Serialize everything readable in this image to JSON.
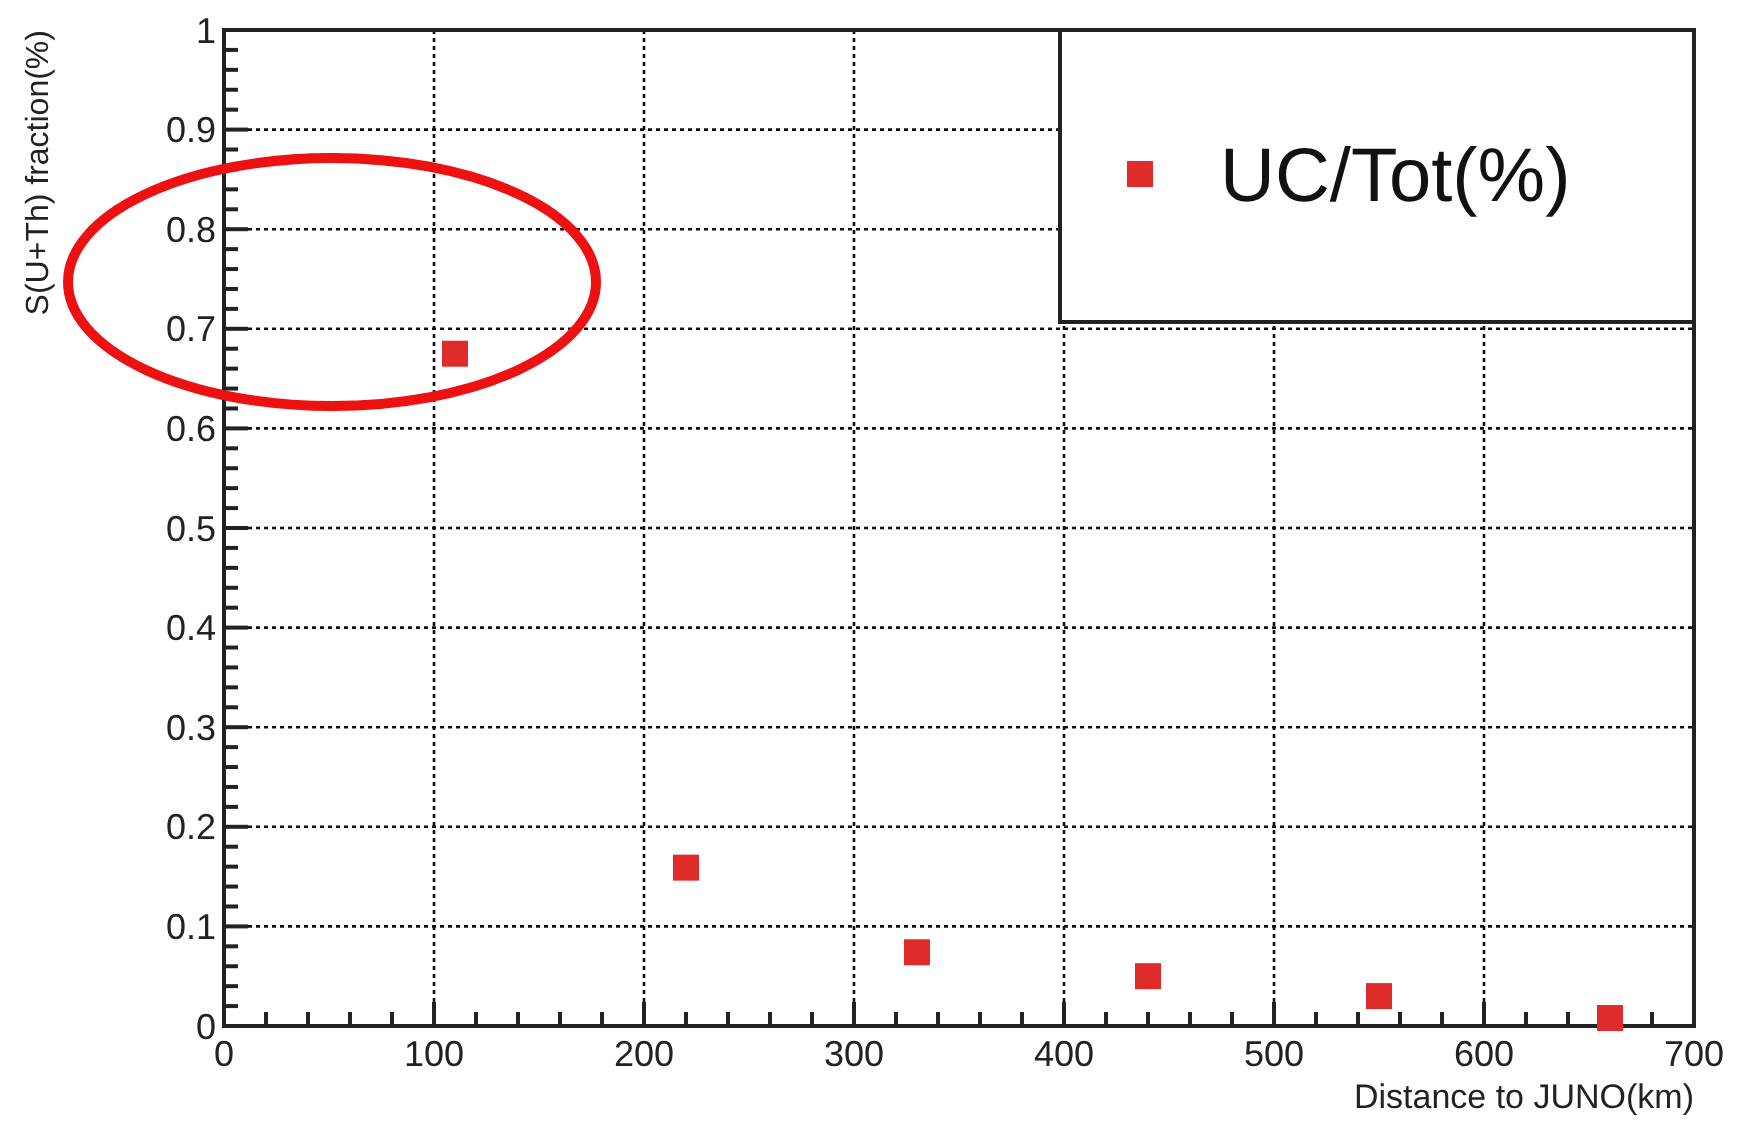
{
  "chart_data": {
    "type": "scatter",
    "xlabel": "Distance to JUNO(km)",
    "ylabel": "S(U+Th) fraction(%)",
    "x": [
      110,
      220,
      330,
      440,
      550,
      660
    ],
    "series": [
      {
        "name": "UC/Tot(%)",
        "color": "#e02b2b",
        "values": [
          0.675,
          0.159,
          0.074,
          0.05,
          0.03,
          0.008
        ]
      }
    ],
    "xlim": [
      0,
      700
    ],
    "xticks": [
      0,
      {
        "value": 20,
        "label": null
      },
      {
        "value": 40,
        "label": null
      },
      {
        "value": 60,
        "label": null
      },
      {
        "value": 80,
        "label": null
      },
      100,
      {
        "value": 120,
        "label": null
      },
      {
        "value": 140,
        "label": null
      },
      {
        "value": 160,
        "label": null
      },
      {
        "value": 180,
        "label": null
      },
      200,
      {
        "value": 220,
        "label": null
      },
      {
        "value": 240,
        "label": null
      },
      {
        "value": 260,
        "label": null
      },
      {
        "value": 280,
        "label": null
      },
      300,
      {
        "value": 320,
        "label": null
      },
      {
        "value": 340,
        "label": null
      },
      {
        "value": 360,
        "label": null
      },
      {
        "value": 380,
        "label": null
      },
      400,
      {
        "value": 420,
        "label": null
      },
      {
        "value": 440,
        "label": null
      },
      {
        "value": 460,
        "label": null
      },
      {
        "value": 480,
        "label": null
      },
      500,
      {
        "value": 520,
        "label": null
      },
      {
        "value": 540,
        "label": null
      },
      {
        "value": 560,
        "label": null
      },
      {
        "value": 580,
        "label": null
      },
      600,
      {
        "value": 620,
        "label": null
      },
      {
        "value": 640,
        "label": null
      },
      {
        "value": 660,
        "label": null
      },
      {
        "value": 680,
        "label": null
      },
      700
    ],
    "ylim": [
      0,
      1
    ],
    "yticks": [
      0,
      {
        "value": 0.02,
        "label": null
      },
      {
        "value": 0.04,
        "label": null
      },
      {
        "value": 0.06,
        "label": null
      },
      {
        "value": 0.08,
        "label": null
      },
      0.1,
      {
        "value": 0.12,
        "label": null
      },
      {
        "value": 0.14,
        "label": null
      },
      {
        "value": 0.16,
        "label": null
      },
      {
        "value": 0.18,
        "label": null
      },
      0.2,
      {
        "value": 0.22,
        "label": null
      },
      {
        "value": 0.24,
        "label": null
      },
      {
        "value": 0.26,
        "label": null
      },
      {
        "value": 0.28,
        "label": null
      },
      0.3,
      {
        "value": 0.32,
        "label": null
      },
      {
        "value": 0.34,
        "label": null
      },
      {
        "value": 0.36,
        "label": null
      },
      {
        "value": 0.38,
        "label": null
      },
      0.4,
      {
        "value": 0.42,
        "label": null
      },
      {
        "value": 0.44,
        "label": null
      },
      {
        "value": 0.46,
        "label": null
      },
      {
        "value": 0.48,
        "label": null
      },
      0.5,
      {
        "value": 0.52,
        "label": null
      },
      {
        "value": 0.54,
        "label": null
      },
      {
        "value": 0.56,
        "label": null
      },
      {
        "value": 0.58,
        "label": null
      },
      0.6,
      {
        "value": 0.62,
        "label": null
      },
      {
        "value": 0.64,
        "label": null
      },
      {
        "value": 0.66,
        "label": null
      },
      {
        "value": 0.68,
        "label": null
      },
      0.7,
      {
        "value": 0.72,
        "label": null
      },
      {
        "value": 0.74,
        "label": null
      },
      {
        "value": 0.76,
        "label": null
      },
      {
        "value": 0.78,
        "label": null
      },
      0.8,
      {
        "value": 0.82,
        "label": null
      },
      {
        "value": 0.84,
        "label": null
      },
      {
        "value": 0.86,
        "label": null
      },
      {
        "value": 0.88,
        "label": null
      },
      0.9,
      {
        "value": 0.92,
        "label": null
      },
      {
        "value": 0.94,
        "label": null
      },
      {
        "value": 0.96,
        "label": null
      },
      {
        "value": 0.98,
        "label": null
      },
      1
    ],
    "grid": true,
    "legend": "top right",
    "marker": "square"
  }
}
